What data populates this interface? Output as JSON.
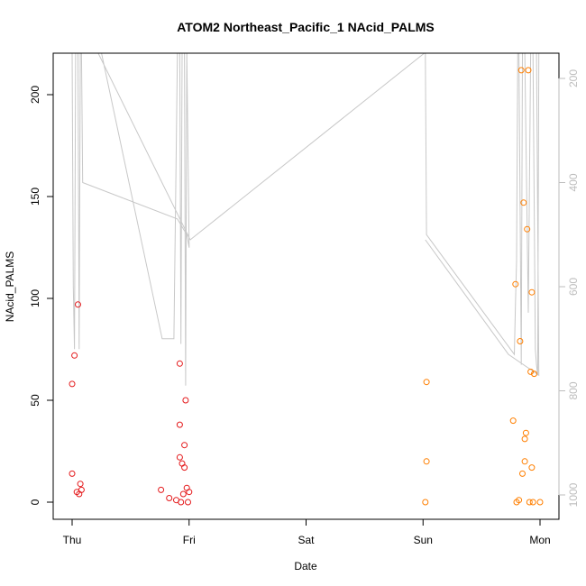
{
  "chart_data": {
    "type": "scatter",
    "title": "ATOM2 Northeast_Pacific_1 NAcid_PALMS",
    "xlabel": "Date",
    "ylabel": "NAcid_PALMS",
    "x_ticks": [
      "Thu",
      "Fri",
      "Sat",
      "Sun",
      "Mon"
    ],
    "xlim": [
      -0.17,
      4.17
    ],
    "ylim": [
      -8,
      220
    ],
    "y_ticks": [
      0,
      50,
      100,
      150,
      200
    ],
    "y2_ticks": [
      200,
      400,
      600,
      800,
      1000
    ],
    "y2lim": [
      1050,
      150
    ],
    "grid": false,
    "colors": {
      "series1": "#e41a1c",
      "series2": "#ff7f00",
      "altitude": "#c8c8c8"
    },
    "series": [
      {
        "color": "#e41a1c",
        "points": [
          [
            0.0,
            58
          ],
          [
            0.02,
            72
          ],
          [
            0.0,
            14
          ],
          [
            0.04,
            5
          ],
          [
            0.05,
            97
          ],
          [
            0.06,
            4
          ],
          [
            0.07,
            9
          ],
          [
            0.08,
            6
          ],
          [
            0.76,
            6
          ],
          [
            0.83,
            2
          ],
          [
            0.89,
            1
          ],
          [
            0.92,
            22
          ],
          [
            0.92,
            38
          ],
          [
            0.92,
            68
          ],
          [
            0.93,
            0
          ],
          [
            0.94,
            19
          ],
          [
            0.95,
            4
          ],
          [
            0.96,
            28
          ],
          [
            0.96,
            17
          ],
          [
            0.97,
            50
          ],
          [
            0.98,
            7
          ],
          [
            0.99,
            0
          ],
          [
            1.0,
            5
          ]
        ]
      },
      {
        "color": "#ff7f00",
        "points": [
          [
            3.03,
            59
          ],
          [
            3.03,
            20
          ],
          [
            3.02,
            0
          ],
          [
            3.77,
            40
          ],
          [
            3.79,
            107
          ],
          [
            3.8,
            0
          ],
          [
            3.82,
            1
          ],
          [
            3.83,
            79
          ],
          [
            3.84,
            212
          ],
          [
            3.85,
            14
          ],
          [
            3.86,
            147
          ],
          [
            3.87,
            20
          ],
          [
            3.87,
            31
          ],
          [
            3.88,
            34
          ],
          [
            3.89,
            134
          ],
          [
            3.9,
            212
          ],
          [
            3.91,
            0
          ],
          [
            3.92,
            64
          ],
          [
            3.93,
            17
          ],
          [
            3.94,
            0
          ],
          [
            3.93,
            103
          ],
          [
            3.95,
            63
          ],
          [
            4.0,
            0
          ]
        ]
      }
    ],
    "altitude_track": [
      [
        0.0,
        150
      ],
      [
        0.01,
        600
      ],
      [
        0.02,
        720
      ],
      [
        0.03,
        150
      ],
      [
        0.05,
        150
      ],
      [
        0.06,
        720
      ],
      [
        0.07,
        150
      ],
      [
        0.08,
        150
      ],
      [
        0.09,
        400
      ],
      [
        0.9,
        470
      ],
      [
        0.98,
        500
      ],
      [
        1.0,
        525
      ],
      [
        0.98,
        150
      ],
      [
        0.97,
        790
      ],
      [
        0.96,
        150
      ],
      [
        0.94,
        150
      ],
      [
        0.93,
        710
      ],
      [
        0.92,
        150
      ],
      [
        0.9,
        150
      ],
      [
        0.87,
        700
      ],
      [
        0.8,
        700
      ],
      [
        0.77,
        700
      ],
      [
        0.25,
        150
      ],
      [
        0.22,
        150
      ],
      [
        1.01,
        510
      ],
      [
        3.02,
        150
      ],
      [
        3.02,
        150
      ],
      [
        3.03,
        500
      ],
      [
        3.78,
        730
      ],
      [
        3.79,
        630
      ],
      [
        3.8,
        550
      ],
      [
        3.81,
        150
      ],
      [
        3.82,
        150
      ],
      [
        3.84,
        750
      ],
      [
        3.85,
        150
      ],
      [
        3.87,
        150
      ],
      [
        3.9,
        650
      ],
      [
        3.92,
        150
      ],
      [
        3.94,
        150
      ],
      [
        3.96,
        720
      ],
      [
        3.97,
        750
      ],
      [
        3.98,
        770
      ],
      [
        3.99,
        150
      ],
      [
        4.0,
        150
      ],
      [
        3.98,
        150
      ],
      [
        3.97,
        150
      ],
      [
        3.99,
        770
      ],
      [
        3.73,
        730
      ],
      [
        3.02,
        510
      ]
    ]
  }
}
